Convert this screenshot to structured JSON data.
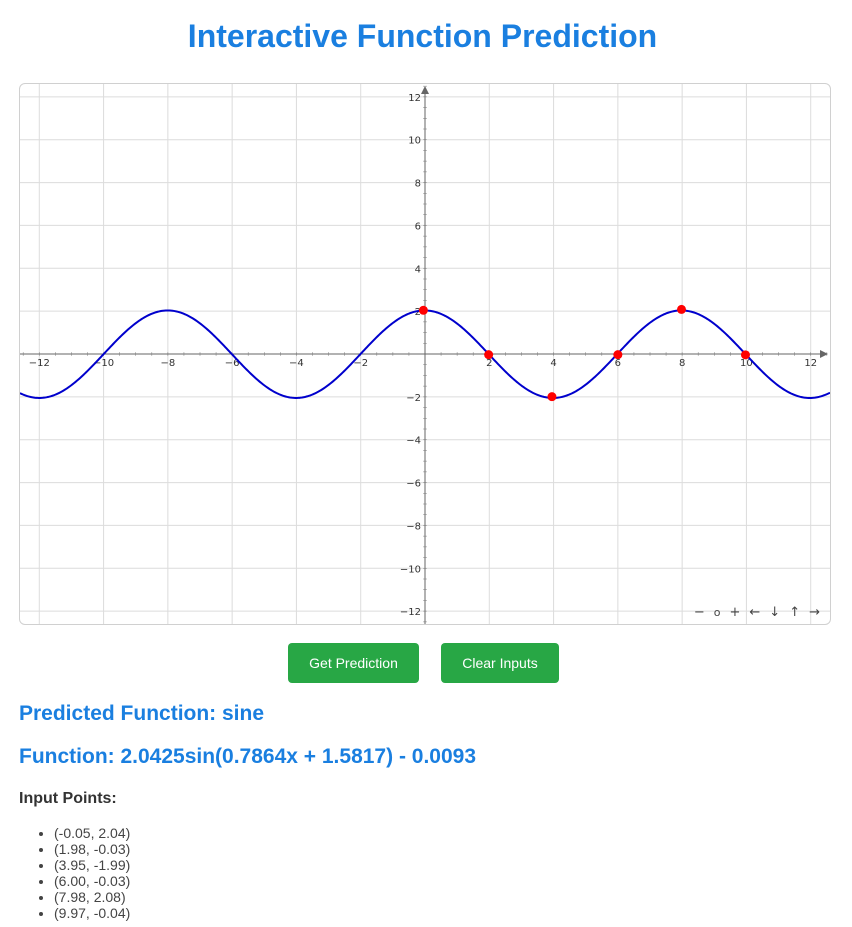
{
  "page": {
    "title": "Interactive Function Prediction"
  },
  "board": {
    "x_range": [
      -12.6,
      12.6
    ],
    "y_range": [
      -12.6,
      12.6
    ],
    "ticks": [
      -12,
      -10,
      -8,
      -6,
      -4,
      -2,
      2,
      4,
      6,
      8,
      10,
      12
    ],
    "grid_step": 2,
    "curve": {
      "amplitude": 2.0425,
      "frequency": 0.7864,
      "phase": 1.5817,
      "offset": -0.0093,
      "color": "#0000cc"
    },
    "point_color": "#ff0000",
    "nav": {
      "zoom_out": "−",
      "zoom_reset": "o",
      "zoom_in": "+",
      "left": "←",
      "down": "↓",
      "up": "↑",
      "right": "→"
    }
  },
  "buttons": {
    "predict": "Get Prediction",
    "clear": "Clear Inputs",
    "color": "#28a745"
  },
  "result": {
    "predicted": "Predicted Function: sine",
    "formula": "Function: 2.0425sin(0.7864x + 1.5817) - 0.0093"
  },
  "inputs": {
    "heading": "Input Points:",
    "points": [
      "(-0.05, 2.04)",
      "(1.98, -0.03)",
      "(3.95, -1.99)",
      "(6.00, -0.03)",
      "(7.98, 2.08)",
      "(9.97, -0.04)"
    ],
    "coords": [
      [
        -0.05,
        2.04
      ],
      [
        1.98,
        -0.03
      ],
      [
        3.95,
        -1.99
      ],
      [
        6.0,
        -0.03
      ],
      [
        7.98,
        2.08
      ],
      [
        9.97,
        -0.04
      ]
    ]
  },
  "colors": {
    "accent": "#1a7fe0"
  }
}
